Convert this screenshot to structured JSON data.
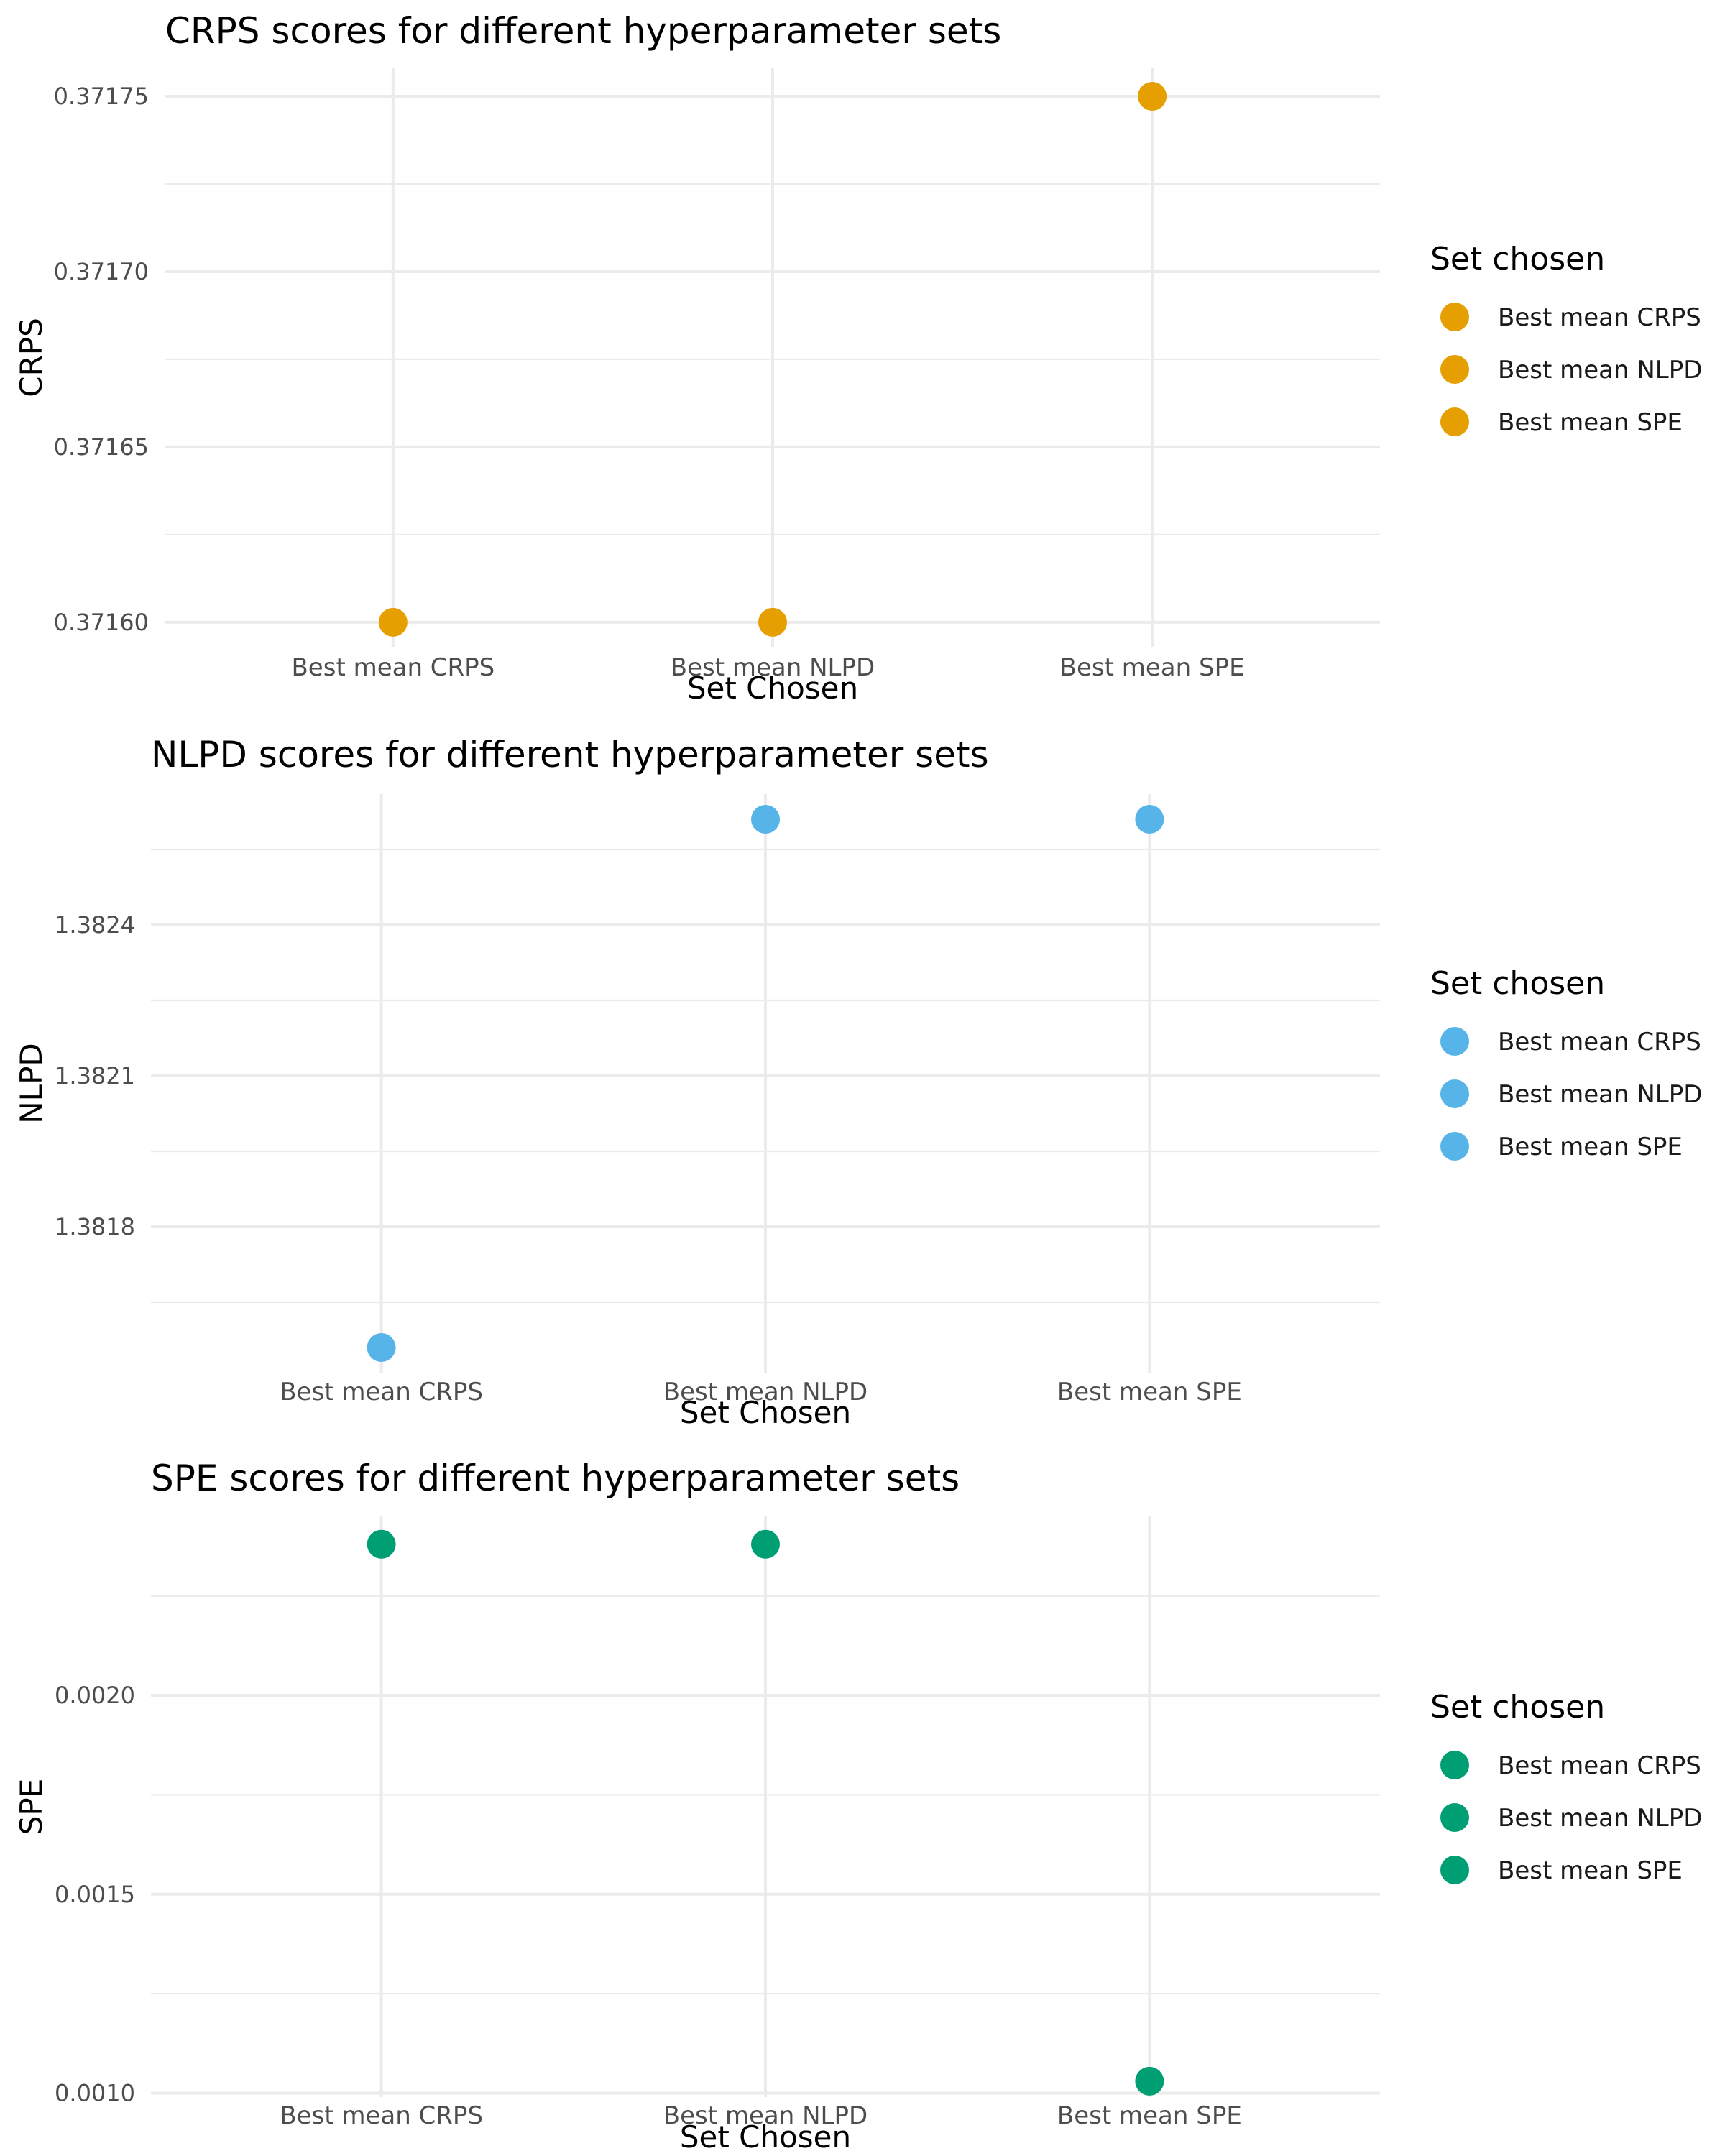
{
  "chart_data": [
    {
      "type": "scatter",
      "title": "CRPS scores for different hyperparameter sets",
      "xlabel": "Set Chosen",
      "ylabel": "CRPS",
      "categories": [
        "Best mean CRPS",
        "Best mean NLPD",
        "Best mean SPE"
      ],
      "values": [
        0.3716,
        0.3716,
        0.37175
      ],
      "yticks": [
        0.3716,
        0.37165,
        0.3717,
        0.37175
      ],
      "ytick_labels": [
        "0.37160",
        "0.37165",
        "0.37170",
        "0.37175"
      ],
      "ylim": [
        0.371593,
        0.371758
      ],
      "color": "#E69F00",
      "grid": true,
      "legend": {
        "title": "Set chosen",
        "position": "right",
        "entries": [
          "Best mean CRPS",
          "Best mean NLPD",
          "Best mean SPE"
        ]
      }
    },
    {
      "type": "scatter",
      "title": "NLPD scores for different hyperparameter sets",
      "xlabel": "Set Chosen",
      "ylabel": "NLPD",
      "categories": [
        "Best mean CRPS",
        "Best mean NLPD",
        "Best mean SPE"
      ],
      "values": [
        1.38156,
        1.38261,
        1.38261
      ],
      "yticks": [
        1.3818,
        1.3821,
        1.3824
      ],
      "ytick_labels": [
        "1.3818",
        "1.3821",
        "1.3824"
      ],
      "ylim": [
        1.38151,
        1.38266
      ],
      "color": "#56B4E9",
      "grid": true,
      "legend": {
        "title": "Set chosen",
        "position": "right",
        "entries": [
          "Best mean CRPS",
          "Best mean NLPD",
          "Best mean SPE"
        ]
      }
    },
    {
      "type": "scatter",
      "title": "SPE scores for different hyperparameter sets",
      "xlabel": "Set Chosen",
      "ylabel": "SPE",
      "categories": [
        "Best mean CRPS",
        "Best mean NLPD",
        "Best mean SPE"
      ],
      "values": [
        0.00238,
        0.00238,
        0.00103
      ],
      "yticks": [
        0.001,
        0.0015,
        0.002
      ],
      "ytick_labels": [
        "0.0010",
        "0.0015",
        "0.0020"
      ],
      "ylim": [
        0.00099,
        0.00245
      ],
      "color": "#009E73",
      "grid": true,
      "legend": {
        "title": "Set chosen",
        "position": "right",
        "entries": [
          "Best mean CRPS",
          "Best mean NLPD",
          "Best mean SPE"
        ]
      }
    }
  ]
}
